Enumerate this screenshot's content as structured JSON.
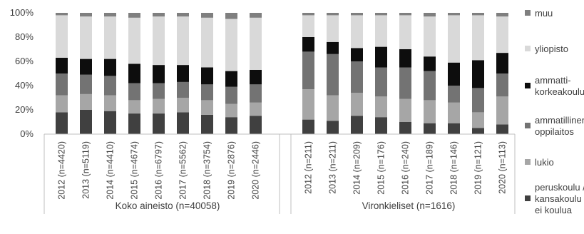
{
  "chart_data": {
    "type": "bar",
    "stacked": true,
    "percent_scale": true,
    "y_ticks": [
      "0%",
      "20%",
      "40%",
      "60%",
      "80%",
      "100%"
    ],
    "ylim": [
      0,
      100
    ],
    "grid": false,
    "legend_placement": "right",
    "groups": [
      {
        "label": "Koko aineisto (n=40058)",
        "categories": [
          "2012 (n=4420)",
          "2013 (n=5119)",
          "2014 (n=4410)",
          "2015 (n=4674)",
          "2016 (n=6797)",
          "2017 (n=5562)",
          "2018 (n=3754)",
          "2019 (n=2876)",
          "2020 (n=2446)"
        ],
        "series": [
          {
            "name": "peruskoulu / kansakoulu / ei koulua",
            "values": [
              18,
              20,
              19,
              17,
              17,
              18,
              16,
              14,
              15
            ]
          },
          {
            "name": "lukio",
            "values": [
              14,
              13,
              13,
              11,
              12,
              12,
              12,
              11,
              11
            ]
          },
          {
            "name": "ammatillinen oppilaitos",
            "values": [
              18,
              16,
              16,
              14,
              13,
              13,
              13,
              14,
              15
            ]
          },
          {
            "name": "ammatti-korkeakoulu",
            "values": [
              13,
              13,
              14,
              16,
              15,
              14,
              14,
              13,
              12
            ]
          },
          {
            "name": "yliopisto",
            "values": [
              35,
              35,
              35,
              38,
              40,
              40,
              41,
              43,
              43
            ]
          },
          {
            "name": "muu",
            "values": [
              2,
              3,
              3,
              4,
              3,
              3,
              4,
              5,
              4
            ]
          }
        ]
      },
      {
        "label": "Vironkieliset (n=1616)",
        "categories": [
          "2012 (n=211)",
          "2013 (n=211)",
          "2014 (n=209)",
          "2015 (n=176)",
          "2016 (n=240)",
          "2017 (n=189)",
          "2018 (n=146)",
          "2019 (n=121)",
          "2020 (n=113)"
        ],
        "series": [
          {
            "name": "peruskoulu / kansakoulu / ei koulua",
            "values": [
              12,
              11,
              15,
              14,
              10,
              9,
              9,
              5,
              8
            ]
          },
          {
            "name": "lukio",
            "values": [
              25,
              21,
              19,
              17,
              19,
              19,
              17,
              13,
              23
            ]
          },
          {
            "name": "ammatillinen oppilaitos",
            "values": [
              31,
              34,
              26,
              24,
              26,
              24,
              14,
              20,
              19
            ]
          },
          {
            "name": "ammatti-korkeakoulu",
            "values": [
              12,
              10,
              11,
              17,
              15,
              12,
              19,
              23,
              17
            ]
          },
          {
            "name": "yliopisto",
            "values": [
              18,
              22,
              27,
              26,
              28,
              33,
              39,
              37,
              30
            ]
          },
          {
            "name": "muu",
            "values": [
              2,
              2,
              2,
              2,
              2,
              3,
              2,
              2,
              3
            ]
          }
        ]
      }
    ],
    "legend": [
      {
        "key": "muu",
        "lines": [
          "muu"
        ],
        "color": "#7f7f7f"
      },
      {
        "key": "yliopisto",
        "lines": [
          "yliopisto"
        ],
        "color": "#d9d9d9"
      },
      {
        "key": "ammatti-korkeakoulu",
        "lines": [
          "ammatti-",
          "korkeakoulu"
        ],
        "color": "#0d0d0d"
      },
      {
        "key": "ammatillinen oppilaitos",
        "lines": [
          "ammatillinen",
          "oppilaitos"
        ],
        "color": "#737373"
      },
      {
        "key": "lukio",
        "lines": [
          "lukio"
        ],
        "color": "#a6a6a6"
      },
      {
        "key": "peruskoulu / kansakoulu / ei koulua",
        "lines": [
          "peruskoulu /",
          "kansakoulu /",
          "ei koulua"
        ],
        "color": "#404040"
      }
    ]
  }
}
